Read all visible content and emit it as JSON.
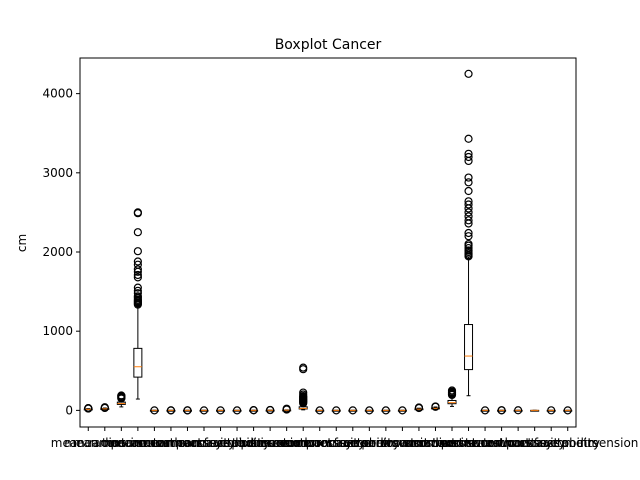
{
  "chart_data": {
    "type": "boxplot",
    "title": "Boxplot Cancer",
    "ylabel": "cm",
    "ylim": [
      -210,
      4450
    ],
    "y_ticks": [
      0,
      1000,
      2000,
      3000,
      4000
    ],
    "grid": false,
    "categories": [
      "mean radius",
      "mean texture",
      "mean perimeter",
      "mean area",
      "mean smoothness",
      "mean compactness",
      "mean concavity",
      "mean concave points",
      "mean symmetry",
      "mean fractal dimension",
      "radius error",
      "texture error",
      "perimeter error",
      "area error",
      "smoothness error",
      "compactness error",
      "concavity error",
      "concave points error",
      "symmetry error",
      "fractal dimension error",
      "worst radius",
      "worst texture",
      "worst perimeter",
      "worst area",
      "worst smoothness",
      "worst compactness",
      "worst concavity",
      "worst concave points",
      "worst symmetry",
      "worst fractal dimension"
    ],
    "boxes": [
      {
        "whislo": 7,
        "q1": 12,
        "med": 13,
        "q3": 16,
        "whishi": 22,
        "fliers": [
          23,
          25,
          27,
          28
        ]
      },
      {
        "whislo": 10,
        "q1": 16,
        "med": 19,
        "q3": 22,
        "whishi": 30,
        "fliers": [
          31,
          33,
          39
        ]
      },
      {
        "whislo": 44,
        "q1": 75,
        "med": 86,
        "q3": 104,
        "whishi": 147,
        "fliers": [
          150,
          160,
          170,
          182,
          188
        ]
      },
      {
        "whislo": 143,
        "q1": 420,
        "med": 551,
        "q3": 783,
        "whishi": 1326,
        "fliers": [
          1335,
          1350,
          1360,
          1375,
          1385,
          1400,
          1420,
          1440,
          1480,
          1510,
          1550,
          1680,
          1710,
          1750,
          1780,
          1840,
          1880,
          2010,
          2250,
          2490,
          2500
        ]
      },
      {
        "whislo": 0.05,
        "q1": 0.09,
        "med": 0.1,
        "q3": 0.11,
        "whishi": 0.13,
        "fliers": [
          0.16
        ]
      },
      {
        "whislo": 0.02,
        "q1": 0.06,
        "med": 0.09,
        "q3": 0.13,
        "whishi": 0.23,
        "fliers": [
          0.3,
          0.35
        ]
      },
      {
        "whislo": 0,
        "q1": 0.03,
        "med": 0.06,
        "q3": 0.13,
        "whishi": 0.28,
        "fliers": [
          0.3,
          0.43
        ]
      },
      {
        "whislo": 0,
        "q1": 0.02,
        "med": 0.03,
        "q3": 0.07,
        "whishi": 0.15,
        "fliers": [
          0.2
        ]
      },
      {
        "whislo": 0.11,
        "q1": 0.16,
        "med": 0.18,
        "q3": 0.2,
        "whishi": 0.25,
        "fliers": [
          0.3
        ]
      },
      {
        "whislo": 0.05,
        "q1": 0.06,
        "med": 0.06,
        "q3": 0.07,
        "whishi": 0.08,
        "fliers": [
          0.1
        ]
      },
      {
        "whislo": 0.11,
        "q1": 0.23,
        "med": 0.32,
        "q3": 0.48,
        "whishi": 0.85,
        "fliers": [
          1.5,
          2.9
        ]
      },
      {
        "whislo": 0.36,
        "q1": 0.83,
        "med": 1.11,
        "q3": 1.47,
        "whishi": 2.43,
        "fliers": [
          3.6,
          4.9
        ]
      },
      {
        "whislo": 0.76,
        "q1": 1.6,
        "med": 2.29,
        "q3": 3.36,
        "whishi": 5.98,
        "fliers": [
          10,
          21
        ]
      },
      {
        "whislo": 6.8,
        "q1": 17.9,
        "med": 24.5,
        "q3": 45.2,
        "whishi": 86.2,
        "fliers": [
          90,
          100,
          110,
          120,
          130,
          140,
          150,
          160,
          170,
          180,
          200,
          225,
          520,
          540
        ]
      },
      {
        "whislo": 0,
        "q1": 0.01,
        "med": 0.01,
        "q3": 0.01,
        "whishi": 0.01,
        "fliers": [
          0.03
        ]
      },
      {
        "whislo": 0,
        "q1": 0.01,
        "med": 0.02,
        "q3": 0.03,
        "whishi": 0.06,
        "fliers": [
          0.13
        ]
      },
      {
        "whislo": 0,
        "q1": 0.02,
        "med": 0.03,
        "q3": 0.04,
        "whishi": 0.08,
        "fliers": [
          0.4
        ]
      },
      {
        "whislo": 0,
        "q1": 0.01,
        "med": 0.01,
        "q3": 0.01,
        "whishi": 0.03,
        "fliers": [
          0.05
        ]
      },
      {
        "whislo": 0.01,
        "q1": 0.02,
        "med": 0.02,
        "q3": 0.02,
        "whishi": 0.04,
        "fliers": [
          0.08
        ]
      },
      {
        "whislo": 0,
        "q1": 0,
        "med": 0,
        "q3": 0,
        "whishi": 0.01,
        "fliers": [
          0.03
        ]
      },
      {
        "whislo": 7.9,
        "q1": 13,
        "med": 15,
        "q3": 18.8,
        "whishi": 27.5,
        "fliers": [
          30,
          33,
          36
        ]
      },
      {
        "whislo": 12,
        "q1": 21,
        "med": 25.4,
        "q3": 29.7,
        "whishi": 42.7,
        "fliers": [
          45,
          49.5
        ]
      },
      {
        "whislo": 50,
        "q1": 84,
        "med": 97.7,
        "q3": 125,
        "whishi": 188,
        "fliers": [
          195,
          205,
          215,
          225,
          235,
          251
        ]
      },
      {
        "whislo": 185,
        "q1": 515,
        "med": 686,
        "q3": 1084,
        "whishi": 1937,
        "fliers": [
          1945,
          1960,
          1980,
          2000,
          2020,
          2050,
          2080,
          2100,
          2200,
          2240,
          2360,
          2400,
          2450,
          2500,
          2550,
          2600,
          2640,
          2770,
          2880,
          2940,
          3150,
          3200,
          3240,
          3430,
          4250
        ]
      },
      {
        "whislo": 0.07,
        "q1": 0.12,
        "med": 0.13,
        "q3": 0.15,
        "whishi": 0.19,
        "fliers": [
          0.22
        ]
      },
      {
        "whislo": 0.03,
        "q1": 0.15,
        "med": 0.21,
        "q3": 0.34,
        "whishi": 0.62,
        "fliers": [
          0.9,
          1.06
        ]
      },
      {
        "whislo": 0,
        "q1": 0.11,
        "med": 0.23,
        "q3": 0.38,
        "whishi": 0.79,
        "fliers": [
          1.25
        ]
      },
      {
        "whislo": 0,
        "q1": 0.06,
        "med": 0.1,
        "q3": 0.16,
        "whishi": 0.29,
        "fliers": []
      },
      {
        "whislo": 0.16,
        "q1": 0.25,
        "med": 0.28,
        "q3": 0.32,
        "whishi": 0.42,
        "fliers": [
          0.66
        ]
      },
      {
        "whislo": 0.06,
        "q1": 0.07,
        "med": 0.08,
        "q3": 0.09,
        "whishi": 0.12,
        "fliers": [
          0.21
        ]
      }
    ],
    "colors": {
      "box": "#000000",
      "median": "#ff7f0e",
      "flier": "#000000"
    }
  }
}
